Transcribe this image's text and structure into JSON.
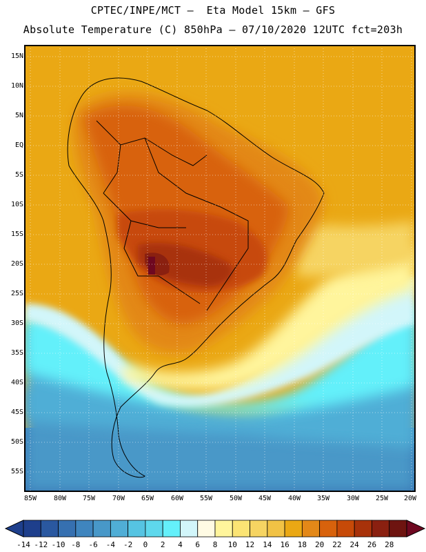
{
  "header": {
    "line1": "CPTEC/INPE/MCT –  Eta Model 15km – GFS",
    "line2": "Absolute Temperature (C) 850hPa – 07/10/2020 12UTC fct=203h"
  },
  "map": {
    "lat_labels": [
      "15N",
      "10N",
      "5N",
      "EQ",
      "5S",
      "10S",
      "15S",
      "20S",
      "25S",
      "30S",
      "35S",
      "40S",
      "45S",
      "50S",
      "55S"
    ],
    "lon_labels": [
      "85W",
      "80W",
      "75W",
      "70W",
      "65W",
      "60W",
      "55W",
      "50W",
      "45W",
      "40W",
      "35W",
      "30W",
      "25W",
      "20W"
    ]
  },
  "colorbar": {
    "labels": [
      "-14",
      "-12",
      "-10",
      "-8",
      "-6",
      "-4",
      "-2",
      "0",
      "2",
      "4",
      "6",
      "8",
      "10",
      "12",
      "14",
      "16",
      "18",
      "20",
      "22",
      "24",
      "26",
      "28"
    ],
    "colors": [
      "#1e3f8c",
      "#2a58a0",
      "#3670b0",
      "#3f85be",
      "#4898c8",
      "#50aed6",
      "#56c4e2",
      "#5ed8ec",
      "#64f0fa",
      "#d2f6fa",
      "#fffbe4",
      "#fff59c",
      "#fbe474",
      "#f6d462",
      "#f1c245",
      "#eaa814",
      "#e38818",
      "#d8620c",
      "#c74a08",
      "#a8320a",
      "#8a2010",
      "#6e1410"
    ],
    "under_color": "#1e3f8c",
    "over_color": "#6e0820"
  }
}
